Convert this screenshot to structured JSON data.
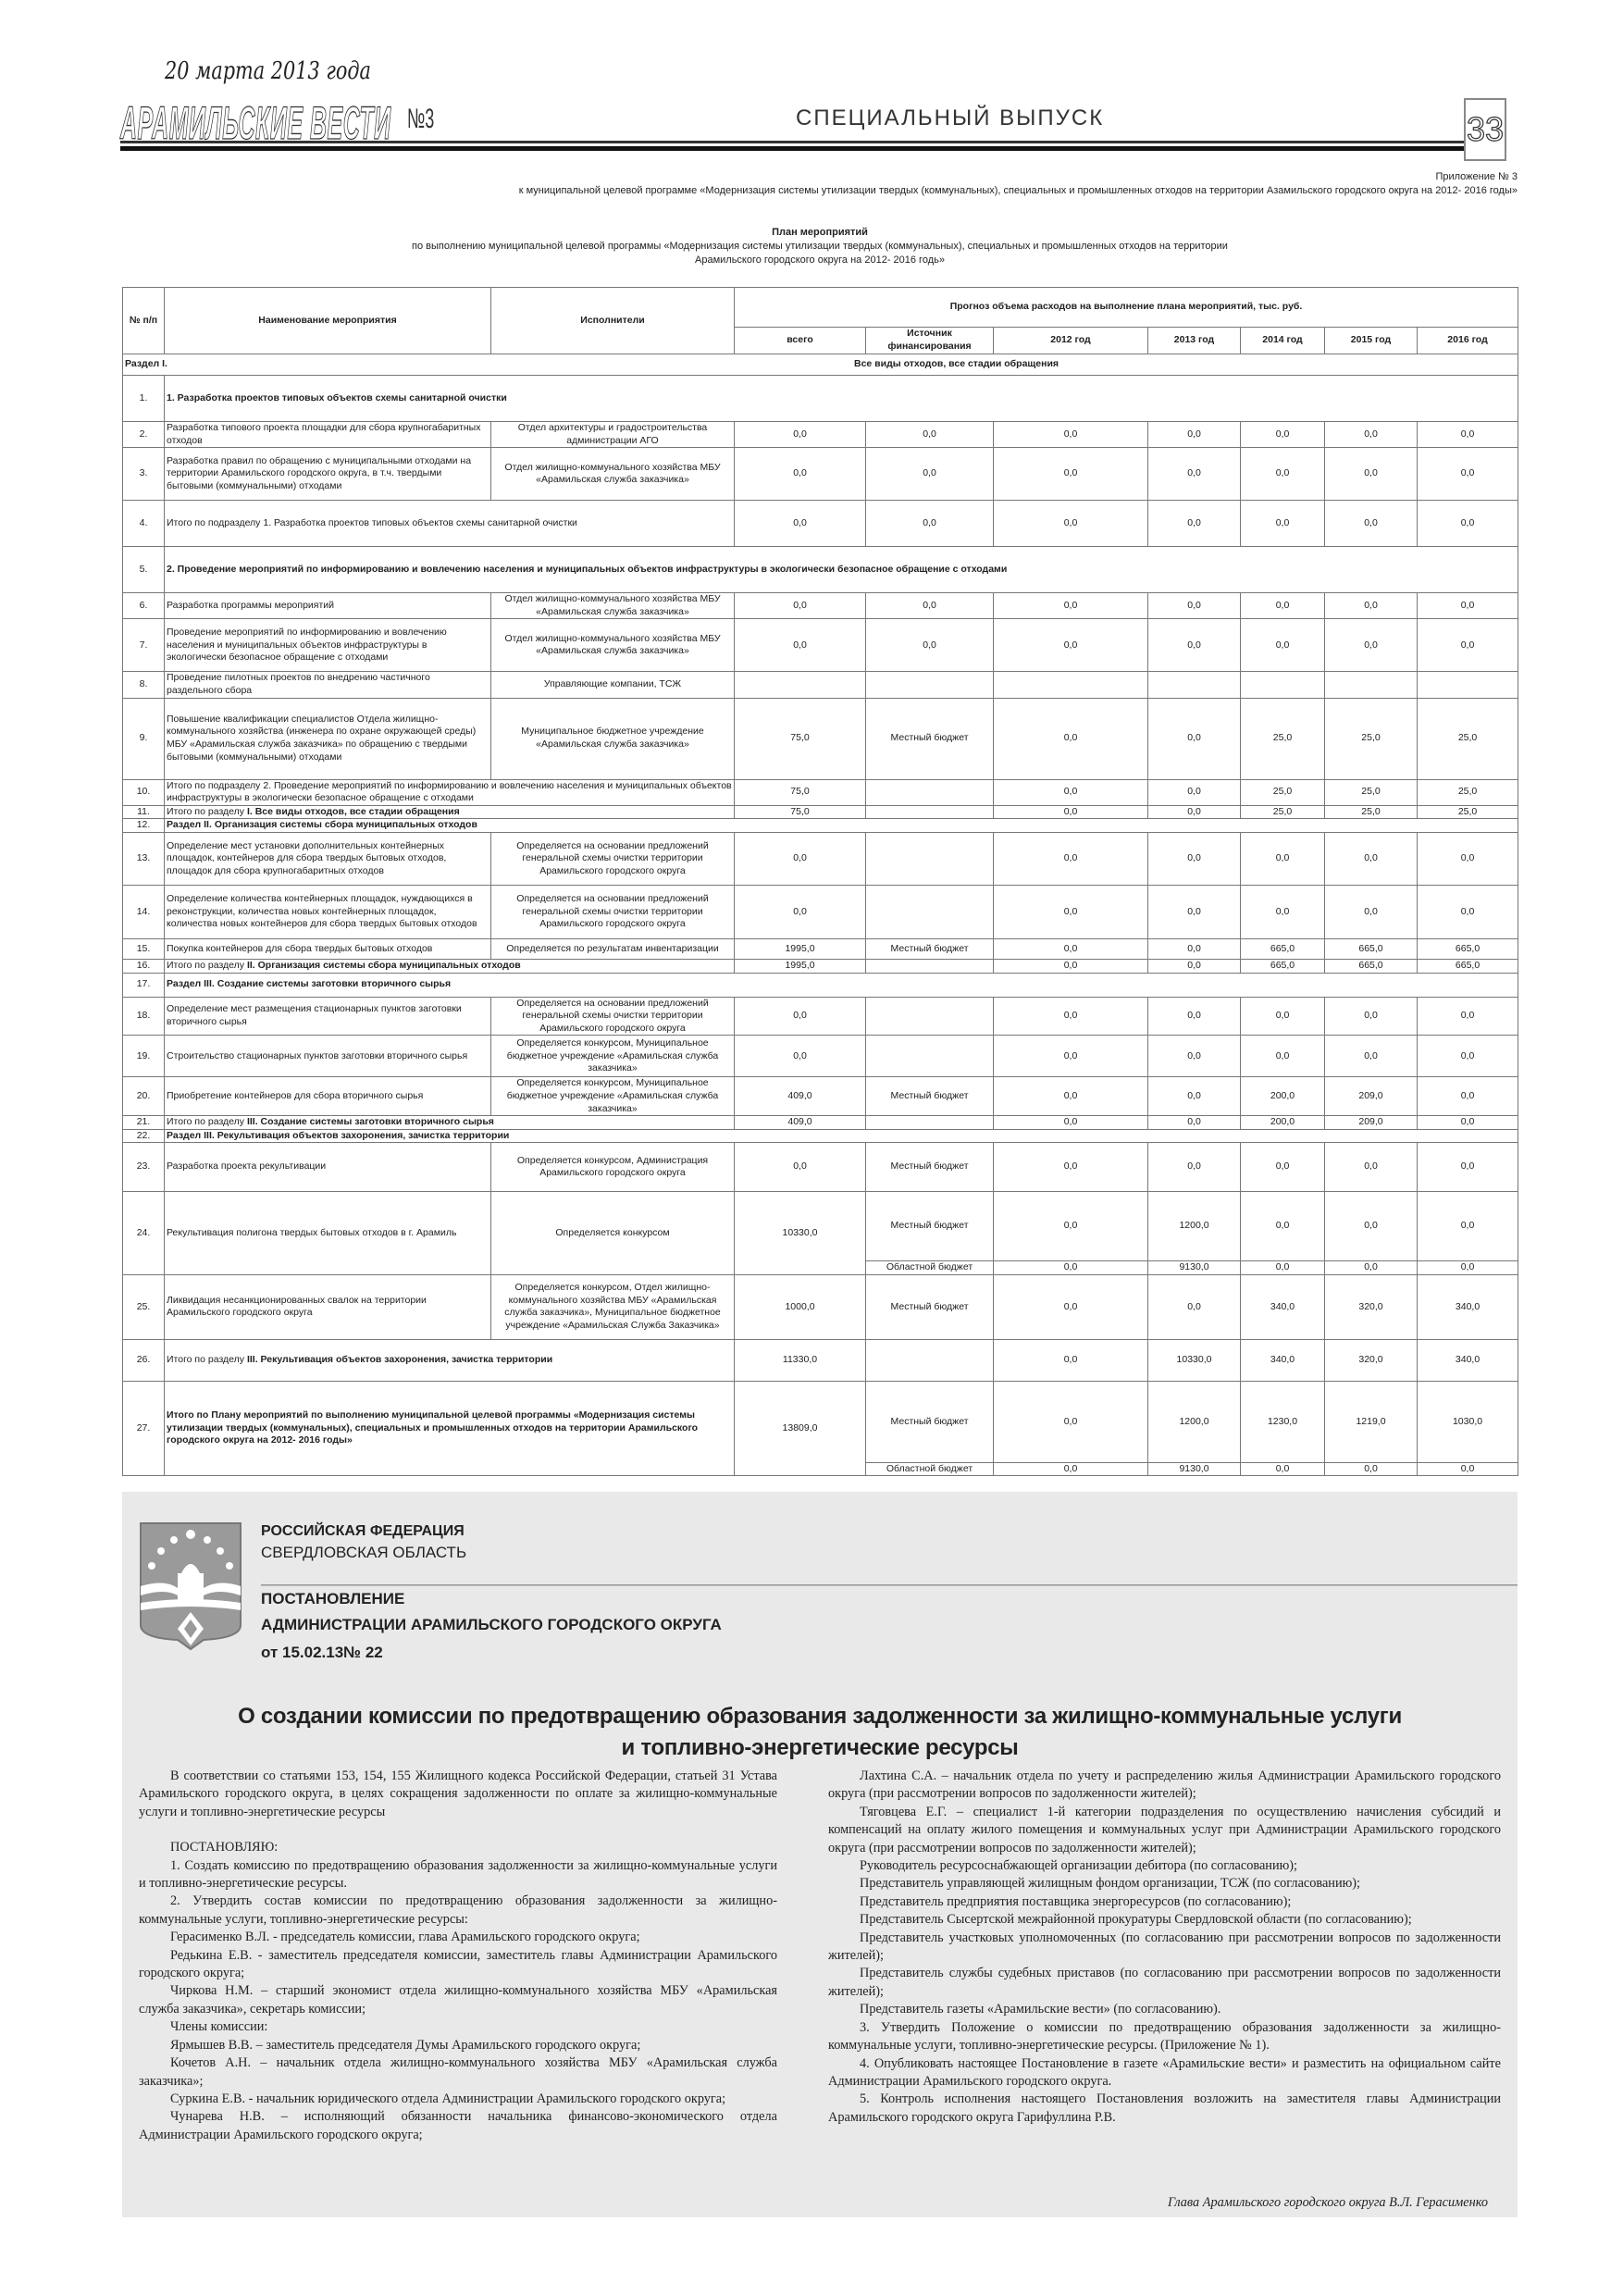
{
  "masthead": {
    "date": "20 марта 2013 года",
    "paper_name": "АРАМИЛЬСКИЕ ВЕСТИ",
    "issue": "№3",
    "special": "СПЕЦИАЛЬНЫЙ ВЫПУСК",
    "page_number": "33"
  },
  "appendix": {
    "line1": "Приложение № 3",
    "line2": "к муниципальной целевой программе «Модернизация системы утилизации твердых (коммунальных), специальных и промышленных отходов на территории Азамильского городского округа на 2012- 2016 годы»"
  },
  "plan": {
    "title": "План мероприятий",
    "subtitle1": "по выполнению муниципальной целевой программы «Модернизация системы утилизации твердых (коммунальных), специальных и промышленных отходов на территории",
    "subtitle2": "Арамильского городского округа  на 2012- 2016 годь»",
    "headers": {
      "num": "№ п/п",
      "name": "Наименование мероприятия",
      "executors": "Исполнители",
      "forecast": "Прогноз объема расходов на выполнение плана мероприятий, тыс. руб.",
      "total": "всего",
      "source": "Источник финансирования",
      "years": [
        "2012 год",
        "2013 год",
        "2014 год",
        "2015 год",
        "2016 год"
      ]
    },
    "section_label": "Раздел I.",
    "section_title": "Все виды отходов, все стадии обращения",
    "rows": [
      {
        "num": "1.",
        "type": "section",
        "name": "1. Разработка проектов типовых объектов схемы санитарной очистки"
      },
      {
        "num": "2.",
        "type": "item",
        "name": "Разработка типового проекта площадки для сбора крупногабаритных отходов",
        "executor": "Отдел архитектуры и градостроительства администрации АГО",
        "total": "0,0",
        "funding": [
          {
            "source": "0,0",
            "values": [
              "0,0",
              "0,0",
              "0,0",
              "0,0",
              "0,0"
            ]
          }
        ]
      },
      {
        "num": "3.",
        "type": "item",
        "name": "Разработка правил по обращению с муниципальными отходами на территории Арамильского городского округа, в т.ч. твердыми бытовыми (коммунальными) отходами",
        "executor": "Отдел жилищно-коммунального хозяйства МБУ «Арамильская служба заказчика»",
        "total": "0,0",
        "funding": [
          {
            "source": "0,0",
            "values": [
              "0,0",
              "0,0",
              "0,0",
              "0,0",
              "0,0"
            ]
          }
        ]
      },
      {
        "num": "4.",
        "type": "total",
        "name": " Итого по подразделу 1. Разработка проектов типовых объектов схемы санитарной очистки",
        "total": "0,0",
        "funding": [
          {
            "source": "0,0",
            "values": [
              "0,0",
              "0,0",
              "0,0",
              "0,0",
              "0,0"
            ]
          }
        ]
      },
      {
        "num": "5.",
        "type": "section",
        "name": "2. Проведение мероприятий по информированию и вовлечению населения и муниципальных объектов инфраструктуры в экологически безопасное обращение с отходами"
      },
      {
        "num": "6.",
        "type": "item",
        "name": "Разработка программы мероприятий",
        "executor": "Отдел жилищно-коммунального хозяйства МБУ «Арамильская служба заказчика»",
        "total": "0,0",
        "funding": [
          {
            "source": "0,0",
            "values": [
              "0,0",
              "0,0",
              "0,0",
              "0,0",
              "0,0"
            ]
          }
        ]
      },
      {
        "num": "7.",
        "type": "item",
        "name": "Проведение мероприятий по информированию и вовлечению населения и муниципальных объектов инфраструктуры в экологически безопасное обращение с отходами",
        "executor": "Отдел жилищно-коммунального хозяйства МБУ «Арамильская служба заказчика»",
        "total": "0,0",
        "funding": [
          {
            "source": "0,0",
            "values": [
              "0,0",
              "0,0",
              "0,0",
              "0,0",
              "0,0"
            ]
          }
        ]
      },
      {
        "num": "8.",
        "type": "item",
        "name": "Проведение пилотных проектов по внедрению частичного раздельного сбора",
        "executor": "Управляющие компании, ТСЖ",
        "total": "",
        "funding": [
          {
            "source": "",
            "values": [
              "",
              "",
              "",
              "",
              ""
            ]
          }
        ]
      },
      {
        "num": "9.",
        "type": "item",
        "name": "Повышение квалификации специалистов Отдела жилищно-коммунального хозяйства (инженера по охране окружающей среды) МБУ «Арамильская служба заказчика» по обращению с  твердыми бытовыми (коммунальными) отходами",
        "executor": "Муниципальное бюджетное учреждение «Арамильская служба заказчика»",
        "total": "75,0",
        "funding": [
          {
            "source": "Местный бюджет",
            "values": [
              "0,0",
              "0,0",
              "25,0",
              "25,0",
              "25,0"
            ]
          }
        ]
      },
      {
        "num": "10.",
        "type": "total",
        "name": "Итого по подразделу 2. Проведение мероприятий по информированию и вовлечению населения и муниципальных объектов инфраструктуры в экологически безопасное обращение с отходами",
        "total": "75,0",
        "funding": [
          {
            "source": "",
            "values": [
              "0,0",
              "0,0",
              "25,0",
              "25,0",
              "25,0"
            ]
          }
        ]
      },
      {
        "num": "11.",
        "type": "total",
        "name": "Итого по разделу ",
        "bold": "I. Все виды отходов, все стадии обращения",
        "total": "75,0",
        "funding": [
          {
            "source": "",
            "values": [
              "0,0",
              "0,0",
              "25,0",
              "25,0",
              "25,0"
            ]
          }
        ]
      },
      {
        "num": "12.",
        "type": "section",
        "name": "Раздел II. Организация системы сбора муниципальных отходов"
      },
      {
        "num": "13.",
        "type": "item",
        "name": "Определение мест установки дополнительных контейнерных площадок, контейнеров для сбора твердых бытовых отходов, площадок для сбора крупногабаритных отходов",
        "executor": "Определяется на основании предложений генеральной схемы очистки территории Арамильского городского округа",
        "total": "0,0",
        "funding": [
          {
            "source": "",
            "values": [
              "0,0",
              "0,0",
              "0,0",
              "0,0",
              "0,0"
            ]
          }
        ]
      },
      {
        "num": "14.",
        "type": "item",
        "name": "Определение количества контейнерных площадок, нуждающихся в реконструкции, количества новых контейнерных площадок, количества новых контейнеров для сбора твердых бытовых отходов",
        "executor": "Определяется на основании предложений генеральной схемы очистки территории Арамильского городского округа",
        "total": "0,0",
        "funding": [
          {
            "source": "",
            "values": [
              "0,0",
              "0,0",
              "0,0",
              "0,0",
              "0,0"
            ]
          }
        ]
      },
      {
        "num": "15.",
        "type": "item",
        "name": "Покупка контейнеров для сбора твердых бытовых отходов",
        "executor": "Определяется по результатам инвентаризации",
        "total": "1995,0",
        "funding": [
          {
            "source": "Местный бюджет",
            "values": [
              "0,0",
              "0,0",
              "665,0",
              "665,0",
              "665,0"
            ]
          }
        ]
      },
      {
        "num": "16.",
        "type": "total",
        "name": "Итого по разделу  ",
        "bold": "II. Организация системы сбора муниципальных отходов",
        "total": "1995,0",
        "funding": [
          {
            "source": "",
            "values": [
              "0,0",
              "0,0",
              "665,0",
              "665,0",
              "665,0"
            ]
          }
        ]
      },
      {
        "num": "17.",
        "type": "section",
        "name": " Раздел III. Создание системы заготовки вторичного сырья"
      },
      {
        "num": "18.",
        "type": "item",
        "name": "Определение мест размещения стационарных пунктов заготовки вторичного сырья",
        "executor": "Определяется на основании предложений генеральной схемы очистки территории Арамильского городского округа",
        "total": "0,0",
        "funding": [
          {
            "source": "",
            "values": [
              "0,0",
              "0,0",
              "0,0",
              "0,0",
              "0,0"
            ]
          }
        ]
      },
      {
        "num": "19.",
        "type": "item",
        "name": "Строительство стационарных пунктов заготовки вторичного сырья",
        "executor": "Определяется конкурсом, Муниципальное бюджетное учреждение «Арамильская служба заказчика»",
        "total": "0,0",
        "funding": [
          {
            "source": "",
            "values": [
              "0,0",
              "0,0",
              "0,0",
              "0,0",
              "0,0"
            ]
          }
        ]
      },
      {
        "num": "20.",
        "type": "item",
        "name": "Приобретение контейнеров для сбора вторичного сырья",
        "executor": "Определяется конкурсом, Муниципальное бюджетное учреждение «Арамильская служба заказчика»",
        "total": "409,0",
        "funding": [
          {
            "source": "Местный бюджет",
            "values": [
              "0,0",
              "0,0",
              "200,0",
              "209,0",
              "0,0"
            ]
          }
        ]
      },
      {
        "num": "21.",
        "type": "total",
        "name": "Итого по разделу ",
        "bold": "III. Создание системы заготовки вторичного сырья",
        "total": "409,0",
        "funding": [
          {
            "source": "",
            "values": [
              "0,0",
              "0,0",
              "200,0",
              "209,0",
              "0,0"
            ]
          }
        ]
      },
      {
        "num": "22.",
        "type": "section",
        "name": " Раздел III. Рекультивация объектов захоронения, зачистка территории"
      },
      {
        "num": "23.",
        "type": "item",
        "name": "Разработка проекта рекультивации",
        "executor": "Определяется конкурсом, Администрация Арамильского городского округа",
        "total": "0,0",
        "funding": [
          {
            "source": "Местный бюджет",
            "values": [
              "0,0",
              "0,0",
              "0,0",
              "0,0",
              "0,0"
            ]
          }
        ]
      },
      {
        "num": "24.",
        "type": "item",
        "name": "Рекультивация полигона твердых бытовых отходов в г. Арамиль",
        "executor": "Определяется конкурсом",
        "total": "10330,0",
        "funding": [
          {
            "source": "Местный бюджет",
            "values": [
              "0,0",
              "1200,0",
              "0,0",
              "0,0",
              "0,0"
            ]
          },
          {
            "source": "Областной бюджет",
            "values": [
              "0,0",
              "9130,0",
              "0,0",
              "0,0",
              "0,0"
            ]
          }
        ]
      },
      {
        "num": "25.",
        "type": "item",
        "name": "Ликвидация несанкционированных свалок на территории Арамильского городского округа",
        "executor": "Определяется конкурсом, Отдел жилищно-коммунального хозяйства МБУ «Арамильская служба заказчика», Муниципальное бюджетное учреждение «Арамильская Служба Заказчика»",
        "total": "1000,0",
        "funding": [
          {
            "source": "Местный бюджет",
            "values": [
              "0,0",
              "0,0",
              "340,0",
              "320,0",
              "340,0"
            ]
          }
        ]
      },
      {
        "num": "26.",
        "type": "total",
        "name": "Итого по разделу ",
        "bold": "III. Рекультивация объектов захоронения, зачистка территории",
        "total": "11330,0",
        "funding": [
          {
            "source": "",
            "values": [
              "0,0",
              "10330,0",
              "340,0",
              "320,0",
              "340,0"
            ]
          }
        ]
      },
      {
        "num": "27.",
        "type": "total",
        "name": "",
        "bold": "Итого по Плану мероприятий по выполнению муниципальной целевой программы «Модернизация системы утилизации твердых (коммунальных), специальных и промышленных отходов на территории Арамильского городского округа на 2012- 2016 годы»",
        "total": "13809,0",
        "funding": [
          {
            "source": "Местный бюджет",
            "values": [
              "0,0",
              "1200,0",
              "1230,0",
              "1219,0",
              "1030,0"
            ]
          },
          {
            "source": "Областной бюджет",
            "values": [
              "0,0",
              "9130,0",
              "0,0",
              "0,0",
              "0,0"
            ]
          }
        ]
      }
    ]
  },
  "decree": {
    "country": "РОССИЙСКАЯ ФЕДЕРАЦИЯ",
    "region": "СВЕРДЛОВСКАЯ ОБЛАСТЬ",
    "doc_type": "ПОСТАНОВЛЕНИЕ",
    "issuer": "АДМИНИСТРАЦИИ АРАМИЛЬСКОГО ГОРОДСКОГО ОКРУГА",
    "number": "от 15.02.13№ 22",
    "headline1": "О создании комиссии по предотвращению образования задолженности за жилищно-коммунальные услуги",
    "headline2": "и топливно-энергетические ресурсы",
    "col1": [
      "В соответствии со статьями 153, 154, 155 Жилищного кодекса Российской Федерации, статьей 31 Устава Арамильского городского округа, в целях сокращения задолженности по оплате за жилищно-коммунальные услуги и топливно-энергетические ресурсы",
      "ПОСТАНОВЛЯЮ:",
      "1. Создать комиссию по предотвращению образования задолженности за жилищно-коммунальные услуги и топливно-энергетические ресурсы.",
      "2. Утвердить состав комиссии по предотвращению образования задолженности за жилищно-коммунальные услуги, топливно-энергетические ресурсы:",
      "Герасименко В.Л. - председатель комиссии, глава Арамильского городского округа;",
      "Редькина Е.В. - заместитель председателя комиссии, заместитель главы Администрации Арамильского городского округа;",
      "Чиркова Н.М. – старший экономист отдела жилищно-коммунального хозяйства МБУ «Арамильская служба заказчика», секретарь комиссии;",
      "Члены комиссии:",
      "Ярмышев В.В. – заместитель председателя Думы Арамильского городского округа;",
      "Кочетов А.Н. – начальник отдела жилищно-коммунального хозяйства МБУ «Арамильская служба заказчика»;",
      "Суркина Е.В. - начальник юридического отдела Администрации Арамильского городского округа;",
      "Чунарева Н.В. – исполняющий обязанности начальника финансово-экономического отдела Администрации Арамильского городского округа;"
    ],
    "col2": [
      "Лахтина С.А. – начальник отдела по учету и распределению жилья Администрации Арамильского городского округа (при рассмотрении вопросов по задолженности жителей);",
      "Тяговцева Е.Г. – специалист 1-й категории подразделения по осуществлению начисления субсидий и компенсаций на оплату жилого помещения и коммунальных услуг при Администрации Арамильского городского округа (при рассмотрении вопросов по задолженности жителей);",
      "Руководитель ресурсоснабжающей организации дебитора (по согласованию);",
      "Представитель управляющей жилищным фондом организации, ТСЖ (по согласованию);",
      "Представитель предприятия поставщика энергоресурсов (по согласованию);",
      "Представитель Сысертской межрайонной прокуратуры Свердловской области (по согласованию);",
      "Представитель участковых уполномоченных (по согласованию при рассмотрении вопросов по задолженности жителей);",
      "Представитель службы судебных приставов (по согласованию при рассмотрении вопросов по задолженности жителей);",
      "Представитель газеты «Арамильские вести» (по согласованию).",
      "3. Утвердить Положение о комиссии по предотвращению образования задолженности за жилищно-коммунальные услуги, топливно-энергетические ресурсы. (Приложение № 1).",
      "4. Опубликовать настоящее Постановление в газете «Арамильские вести» и разместить на официальном сайте Администрации Арамильского городского округа.",
      "5. Контроль исполнения настоящего Постановления возложить на заместителя главы Администрации Арамильского городского округа Гарифуллина Р.В."
    ],
    "signature": "Глава Арамильского городского округа  В.Л. Герасименко"
  }
}
